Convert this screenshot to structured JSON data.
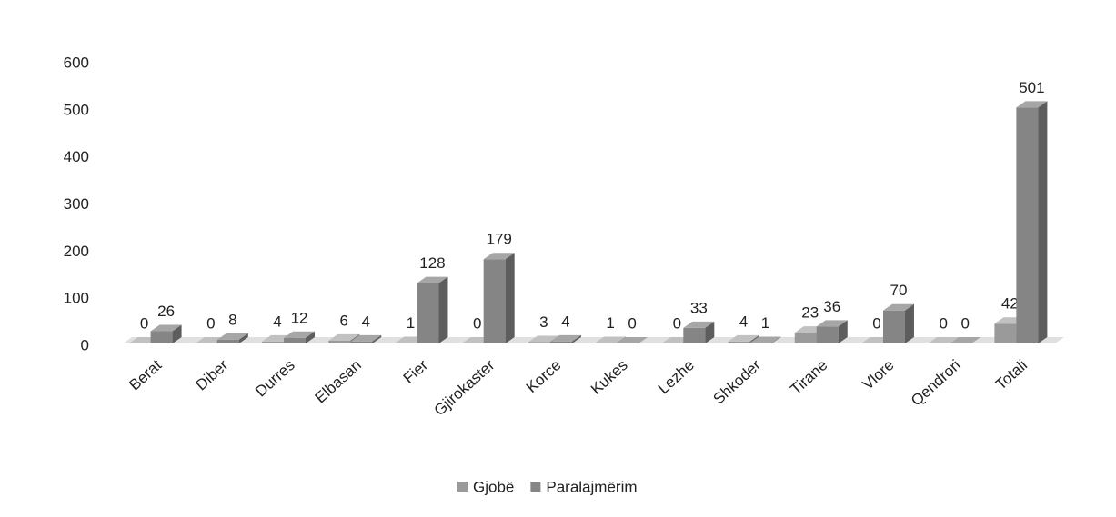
{
  "chart_data": {
    "type": "bar",
    "categories": [
      "Berat",
      "Diber",
      "Durres",
      "Elbasan",
      "Fier",
      "Gjirokaster",
      "Korce",
      "Kukes",
      "Lezhe",
      "Shkoder",
      "Tirane",
      "Vlore",
      "Qendrori",
      "Totali"
    ],
    "series": [
      {
        "name": "Gjobë",
        "color": "#9a9a9a",
        "values": [
          0,
          0,
          4,
          6,
          1,
          0,
          3,
          1,
          0,
          4,
          23,
          0,
          0,
          42
        ]
      },
      {
        "name": "Paralajmërim",
        "color": "#858585",
        "values": [
          26,
          8,
          12,
          4,
          128,
          179,
          4,
          0,
          33,
          1,
          36,
          70,
          0,
          501
        ]
      }
    ],
    "ylim": [
      0,
      600
    ],
    "yticks": [
      0,
      100,
      200,
      300,
      400,
      500,
      600
    ],
    "grid": false,
    "legend": "bottom"
  }
}
